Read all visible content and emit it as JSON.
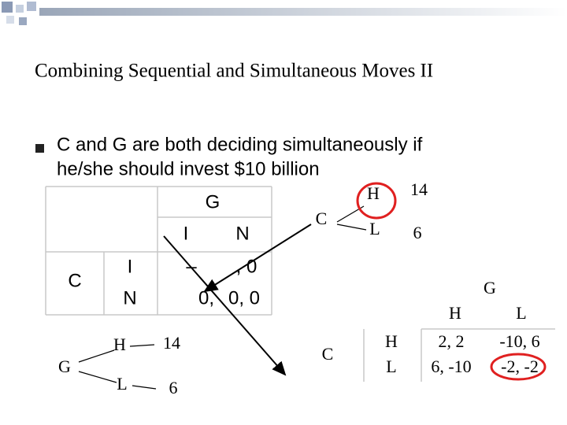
{
  "header": {
    "title": "Combining Sequential and Simultaneous Moves II"
  },
  "bullet": {
    "lines": [
      "C and G are both deciding simultaneously if",
      "he/she should invest $10 billion"
    ]
  },
  "left_table": {
    "column_player": "G",
    "row_player": "C",
    "columns": [
      "I",
      "N"
    ],
    "rows": [
      {
        "label": "I",
        "cells": [
          "–",
          ", 0"
        ]
      },
      {
        "label": "N",
        "cells": [
          "0,",
          "0, 0"
        ]
      }
    ]
  },
  "tree_top": {
    "root": "C",
    "branches": [
      {
        "label": "H",
        "payoff": "14"
      },
      {
        "label": "L",
        "payoff": "6"
      }
    ]
  },
  "tree_bottom": {
    "root": "G",
    "branches": [
      {
        "label": "H",
        "payoff": "14"
      },
      {
        "label": "L",
        "payoff": "6"
      }
    ]
  },
  "right_table": {
    "column_player": "G",
    "row_player": "C",
    "columns": [
      "H",
      "L"
    ],
    "rows": [
      {
        "label": "H",
        "cells": [
          "2, 2",
          "-10, 6"
        ]
      },
      {
        "label": "L",
        "cells": [
          "6, -10",
          "-2, -2"
        ]
      }
    ]
  }
}
